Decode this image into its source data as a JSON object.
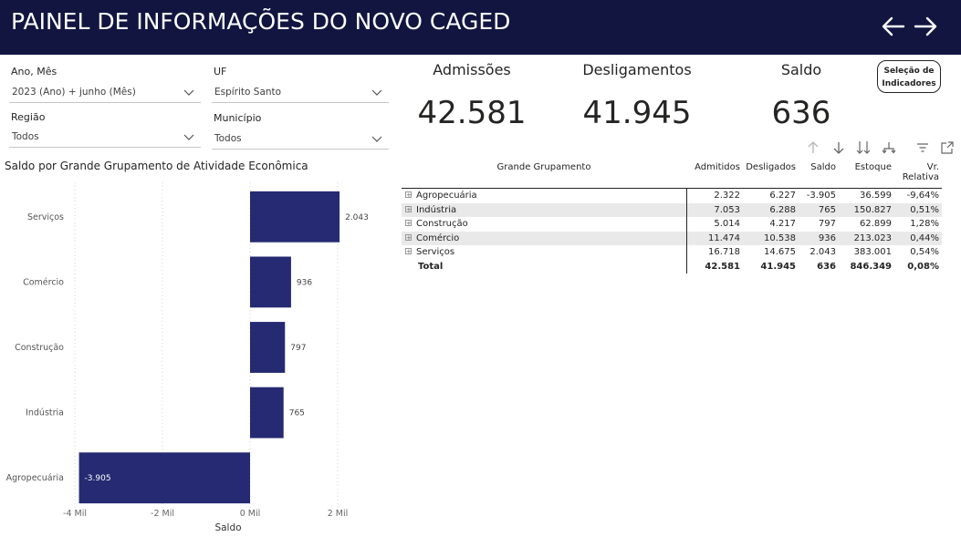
{
  "header": {
    "title": "PAINEL DE INFORMAÇÕES DO NOVO CAGED"
  },
  "filters": {
    "ano_mes": {
      "label": "Ano, Mês",
      "value": "2023 (Ano) + junho (Mês)"
    },
    "uf": {
      "label": "UF",
      "value": "Espírito Santo"
    },
    "regiao": {
      "label": "Região",
      "value": "Todos"
    },
    "municipio": {
      "label": "Município",
      "value": "Todos"
    }
  },
  "kpis": {
    "admissoes": {
      "label": "Admissões",
      "value": "42.581"
    },
    "desligamentos": {
      "label": "Desligamentos",
      "value": "41.945"
    },
    "saldo": {
      "label": "Saldo",
      "value": "636"
    }
  },
  "selection_button": {
    "line1": "Seleção de",
    "line2": "Indicadores"
  },
  "chart_data": {
    "type": "bar",
    "orientation": "horizontal",
    "title": "Saldo por Grande Grupamento de Atividade Econômica",
    "categories": [
      "Serviços",
      "Comércio",
      "Construção",
      "Indústria",
      "Agropecuária"
    ],
    "values": [
      2043,
      936,
      797,
      765,
      -3905
    ],
    "value_labels": [
      "2.043",
      "936",
      "797",
      "765",
      "-3.905"
    ],
    "xlabel": "Saldo",
    "ylabel": "",
    "xlim": [
      -4000,
      2000
    ],
    "xticks": [
      -4000,
      -2000,
      0,
      2000
    ],
    "xtick_labels": [
      "-4 Mil",
      "-2 Mil",
      "0 Mil",
      "2 Mil"
    ],
    "bar_color": "#252a72",
    "grid": true
  },
  "table": {
    "headers": [
      "Grande Grupamento",
      "Admitidos",
      "Desligados",
      "Saldo",
      "Estoque",
      "Vr. Relativa"
    ],
    "rows": [
      [
        "Agropecuária",
        "2.322",
        "6.227",
        "-3.905",
        "36.599",
        "-9,64%"
      ],
      [
        "Indústria",
        "7.053",
        "6.288",
        "765",
        "150.827",
        "0,51%"
      ],
      [
        "Construção",
        "5.014",
        "4.217",
        "797",
        "62.899",
        "1,28%"
      ],
      [
        "Comércio",
        "11.474",
        "10.538",
        "936",
        "213.023",
        "0,44%"
      ],
      [
        "Serviços",
        "16.718",
        "14.675",
        "2.043",
        "383.001",
        "0,54%"
      ]
    ],
    "total": [
      "Total",
      "42.581",
      "41.945",
      "636",
      "846.349",
      "0,08%"
    ]
  },
  "colors": {
    "header_bg": "#111540",
    "bar": "#252a72",
    "row_shade": "#e9e9e9"
  },
  "icons": [
    "arrow-left-icon",
    "arrow-right-icon",
    "chevron-down-icon",
    "drill-up-icon",
    "drill-down-icon",
    "expand-all-icon",
    "hierarchy-icon",
    "filter-icon",
    "focus-mode-icon"
  ]
}
